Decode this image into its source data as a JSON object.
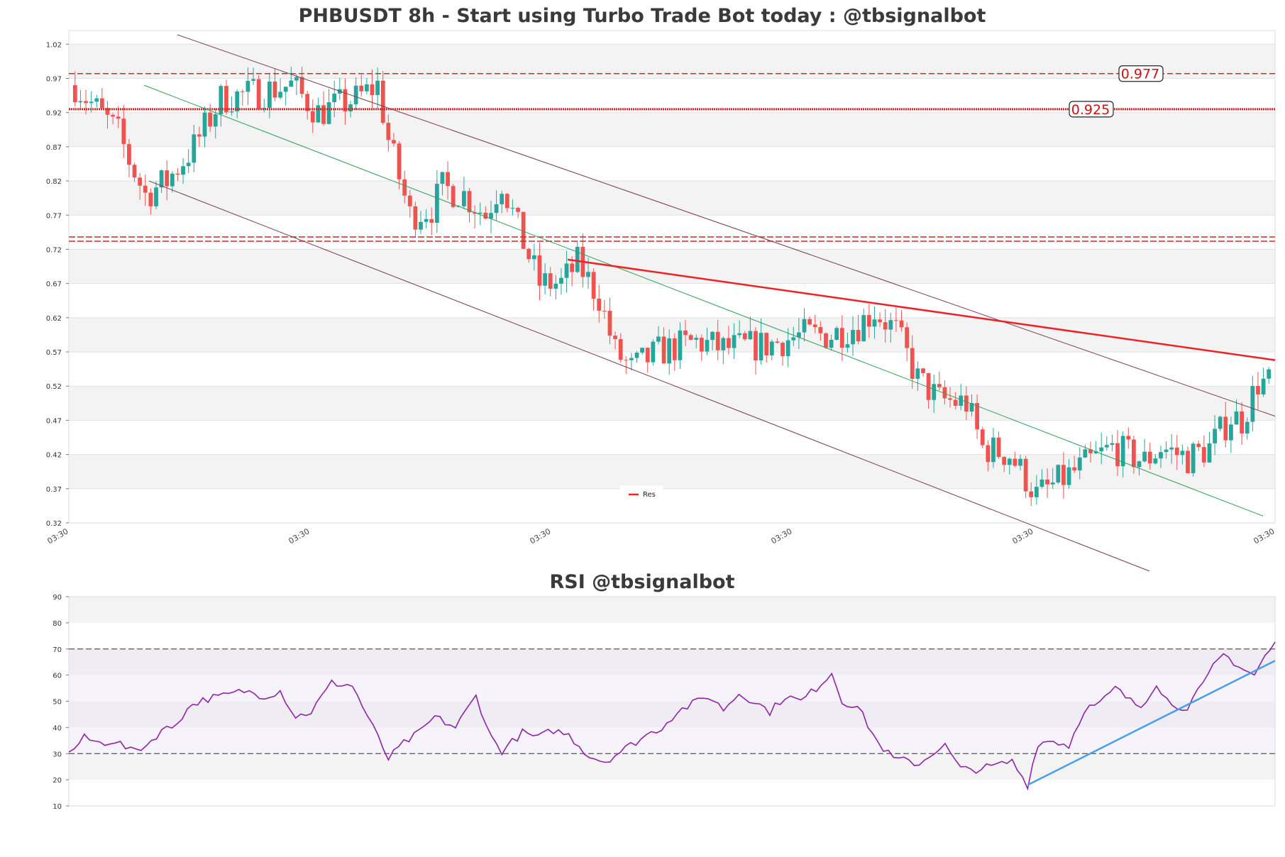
{
  "chart_data": [
    {
      "type": "candlestick",
      "title": "PHBUSDT 8h - Start using Turbo Trade Bot today : @tbsignalbot",
      "ylim": [
        0.32,
        1.04
      ],
      "yticks": [
        "1.02",
        "0.97",
        "0.92",
        "0.87",
        "0.82",
        "0.77",
        "0.72",
        "0.67",
        "0.62",
        "0.57",
        "0.52",
        "0.47",
        "0.42",
        "0.37",
        "0.32"
      ],
      "xtick_labels": [
        "03:30",
        "03:30",
        "03:30",
        "03:30",
        "03:30",
        "03:30"
      ],
      "grid": "horizontal bands",
      "legend": {
        "position": "bottom-center",
        "entries": [
          "Res"
        ]
      },
      "levels": [
        {
          "value": 0.977,
          "label": "0.977",
          "style": "dashed",
          "color": "#d62728"
        },
        {
          "value": 0.925,
          "label": "0.925",
          "style": "dotted-thick",
          "color": "#d62728"
        },
        {
          "value": 0.735,
          "label": "",
          "style": "dashed-double",
          "color": "#d62728"
        }
      ],
      "candles": {
        "count": 180,
        "close_path": [
          [
            0,
            0.96
          ],
          [
            8,
            0.89
          ],
          [
            10,
            0.85
          ],
          [
            13,
            0.8
          ],
          [
            17,
            0.82
          ],
          [
            22,
            0.87
          ],
          [
            27,
            0.94
          ],
          [
            34,
            0.95
          ],
          [
            40,
            0.96
          ],
          [
            45,
            0.92
          ],
          [
            52,
            0.94
          ],
          [
            56,
            0.96
          ],
          [
            58,
            0.88
          ],
          [
            62,
            0.77
          ],
          [
            66,
            0.78
          ],
          [
            68,
            0.81
          ],
          [
            72,
            0.8
          ],
          [
            76,
            0.77
          ],
          [
            79,
            0.82
          ],
          [
            82,
            0.75
          ],
          [
            86,
            0.67
          ],
          [
            90,
            0.67
          ],
          [
            93,
            0.7
          ],
          [
            97,
            0.65
          ],
          [
            100,
            0.57
          ],
          [
            103,
            0.545
          ],
          [
            108,
            0.57
          ],
          [
            115,
            0.585
          ],
          [
            120,
            0.575
          ],
          [
            128,
            0.58
          ],
          [
            135,
            0.595
          ],
          [
            140,
            0.595
          ],
          [
            145,
            0.61
          ],
          [
            148,
            0.63
          ],
          [
            152,
            0.6
          ],
          [
            156,
            0.53
          ],
          [
            160,
            0.5
          ],
          [
            165,
            0.495
          ],
          [
            168,
            0.43
          ],
          [
            173,
            0.42
          ],
          [
            176,
            0.385
          ],
          [
            178,
            0.36
          ],
          [
            181,
            0.375
          ],
          [
            186,
            0.4
          ],
          [
            192,
            0.43
          ],
          [
            198,
            0.41
          ],
          [
            201,
            0.43
          ],
          [
            206,
            0.415
          ],
          [
            210,
            0.43
          ],
          [
            214,
            0.475
          ],
          [
            216,
            0.47
          ],
          [
            219,
            0.525
          ]
        ]
      },
      "trendlines": [
        {
          "name": "Res",
          "color": "#ee2222"
        },
        {
          "name": "",
          "color": "#2e9e5a"
        },
        {
          "name": "",
          "color": "#7a3a4a"
        },
        {
          "name": "",
          "color": "#7a3a4a"
        }
      ],
      "colors": {
        "up": "#26a69a",
        "down": "#ef5350"
      }
    },
    {
      "type": "line",
      "title": "RSI @tbsignalbot",
      "ylim": [
        10,
        90
      ],
      "yticks": [
        "90",
        "80",
        "70",
        "60",
        "50",
        "40",
        "30",
        "20",
        "10"
      ],
      "reference_lines": [
        70,
        30
      ],
      "series": [
        {
          "name": "",
          "color": "#8e24aa",
          "values_path": [
            [
              0,
              30
            ],
            [
              3,
              36
            ],
            [
              6,
              34
            ],
            [
              9,
              35
            ],
            [
              12,
              31
            ],
            [
              15,
              33
            ],
            [
              18,
              39
            ],
            [
              20,
              40
            ],
            [
              24,
              49
            ],
            [
              27,
              51
            ],
            [
              30,
              52
            ],
            [
              34,
              54
            ],
            [
              38,
              52
            ],
            [
              41,
              54
            ],
            [
              44,
              44
            ],
            [
              47,
              46
            ],
            [
              51,
              57
            ],
            [
              55,
              56
            ],
            [
              58,
              44
            ],
            [
              62,
              28
            ],
            [
              65,
              34
            ],
            [
              68,
              38
            ],
            [
              71,
              44
            ],
            [
              75,
              40
            ],
            [
              79,
              52
            ],
            [
              82,
              36
            ],
            [
              84,
              31
            ],
            [
              88,
              38
            ],
            [
              91,
              36
            ],
            [
              94,
              39
            ],
            [
              97,
              37
            ],
            [
              101,
              29
            ],
            [
              104,
              27
            ],
            [
              108,
              32
            ],
            [
              112,
              37
            ],
            [
              115,
              40
            ],
            [
              118,
              46
            ],
            [
              121,
              49
            ],
            [
              124,
              52
            ],
            [
              127,
              47
            ],
            [
              130,
              53
            ],
            [
              133,
              50
            ],
            [
              136,
              46
            ],
            [
              139,
              52
            ],
            [
              142,
              50
            ],
            [
              145,
              55
            ],
            [
              148,
              61
            ],
            [
              150,
              50
            ],
            [
              153,
              48
            ],
            [
              157,
              34
            ],
            [
              160,
              28
            ],
            [
              163,
              27
            ],
            [
              165,
              26
            ],
            [
              168,
              31
            ],
            [
              170,
              33
            ],
            [
              173,
              24
            ],
            [
              176,
              24
            ],
            [
              179,
              25
            ],
            [
              183,
              27
            ],
            [
              186,
              18
            ],
            [
              188,
              34
            ],
            [
              191,
              35
            ],
            [
              194,
              33
            ],
            [
              197,
              47
            ],
            [
              200,
              49
            ],
            [
              203,
              55
            ],
            [
              206,
              50
            ],
            [
              208,
              48
            ],
            [
              211,
              57
            ],
            [
              214,
              48
            ],
            [
              217,
              48
            ],
            [
              220,
              56
            ],
            [
              222,
              63
            ],
            [
              224,
              68
            ],
            [
              226,
              65
            ],
            [
              228,
              62
            ],
            [
              230,
              60
            ],
            [
              232,
              67
            ],
            [
              234,
              72
            ]
          ]
        }
      ],
      "trendline": {
        "color": "#4a9ee8"
      }
    }
  ]
}
